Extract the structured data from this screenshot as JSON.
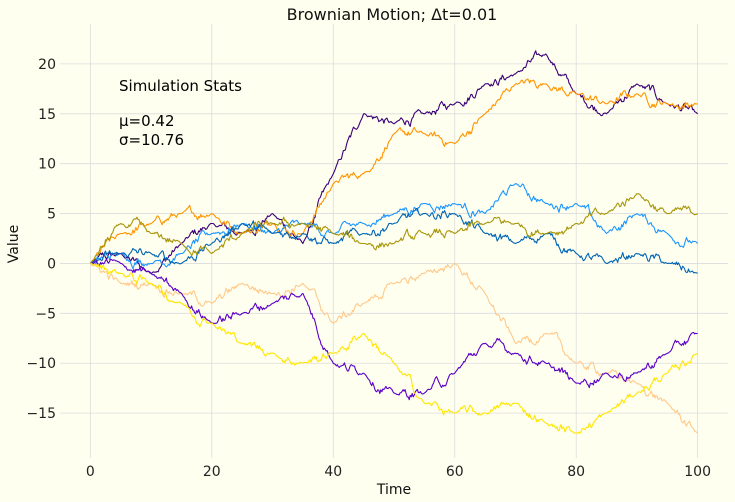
{
  "chart_data": {
    "type": "line",
    "title": "Brownian Motion; Δt=0.01",
    "xlabel": "Time",
    "ylabel": "Value",
    "xlim": [
      -5,
      105
    ],
    "ylim": [
      -19.5,
      24
    ],
    "xticks": [
      0,
      20,
      40,
      60,
      80,
      100
    ],
    "yticks": [
      -15,
      -10,
      -5,
      0,
      5,
      10,
      15,
      20
    ],
    "xtick_labels": [
      "0",
      "20",
      "40",
      "60",
      "80",
      "100"
    ],
    "ytick_labels": [
      "−15",
      "−10",
      "−5",
      "0",
      "5",
      "10",
      "15",
      "20"
    ],
    "grid": true,
    "stats_box": {
      "heading": "Simulation Stats",
      "mu": "μ=0.42",
      "sigma": "σ=10.76"
    },
    "series": [
      {
        "color": "#3a0078",
        "x": [
          0,
          5,
          10,
          15,
          20,
          25,
          30,
          35,
          40,
          45,
          50,
          55,
          60,
          65,
          70,
          75,
          80,
          85,
          90,
          95,
          100
        ],
        "values": [
          0,
          1,
          -1,
          2,
          4,
          3,
          5,
          2,
          9,
          15,
          14,
          15,
          16,
          18,
          19,
          21,
          17,
          15,
          18,
          16,
          15
        ]
      },
      {
        "color": "#ff9400",
        "x": [
          0,
          5,
          10,
          15,
          20,
          25,
          30,
          35,
          40,
          45,
          50,
          55,
          60,
          65,
          70,
          75,
          80,
          85,
          90,
          95,
          100
        ],
        "values": [
          0,
          3,
          4,
          5,
          5,
          3,
          4,
          3,
          8,
          9,
          13,
          13,
          12,
          15,
          18,
          18,
          17,
          16,
          17,
          16,
          16
        ]
      },
      {
        "color": "#1e96ff",
        "x": [
          0,
          5,
          10,
          15,
          20,
          25,
          30,
          35,
          40,
          45,
          50,
          55,
          60,
          65,
          70,
          75,
          80,
          85,
          90,
          95,
          100
        ],
        "values": [
          0,
          1,
          0,
          1,
          3,
          4,
          3,
          4,
          3,
          4,
          5,
          6,
          6,
          5,
          8,
          6,
          6,
          3,
          5,
          3,
          2
        ]
      },
      {
        "color": "#0064b4",
        "x": [
          0,
          5,
          10,
          15,
          20,
          25,
          30,
          35,
          40,
          45,
          50,
          55,
          60,
          65,
          70,
          75,
          80,
          85,
          90,
          95,
          100
        ],
        "values": [
          0,
          1,
          1,
          0,
          2,
          4,
          3,
          3,
          2,
          3,
          4,
          5,
          5,
          3,
          2,
          3,
          1,
          0,
          1,
          0,
          -1
        ]
      },
      {
        "color": "#a8960a",
        "x": [
          0,
          5,
          10,
          15,
          20,
          25,
          30,
          35,
          40,
          45,
          50,
          55,
          60,
          65,
          70,
          75,
          80,
          85,
          90,
          95,
          100
        ],
        "values": [
          0,
          4,
          3,
          2,
          1,
          3,
          4,
          4,
          3,
          2,
          2,
          3,
          3,
          4,
          4,
          3,
          4,
          5,
          7,
          5,
          5
        ]
      },
      {
        "color": "#ffc98a",
        "x": [
          0,
          5,
          10,
          15,
          20,
          25,
          30,
          35,
          40,
          45,
          50,
          55,
          60,
          65,
          70,
          75,
          80,
          85,
          90,
          95,
          100
        ],
        "values": [
          0,
          -2,
          -2,
          -3,
          -4,
          -2,
          -3,
          -2,
          -6,
          -4,
          -2,
          -1,
          0,
          -3,
          -8,
          -7,
          -10,
          -11,
          -12,
          -14,
          -17
        ]
      },
      {
        "color": "#5a00c8",
        "x": [
          0,
          5,
          10,
          15,
          20,
          25,
          30,
          35,
          40,
          45,
          50,
          55,
          60,
          65,
          70,
          75,
          80,
          85,
          90,
          95,
          100
        ],
        "values": [
          0,
          0,
          -1,
          -3,
          -6,
          -5,
          -4,
          -3,
          -10,
          -11,
          -13,
          -13,
          -11,
          -8,
          -9,
          -10,
          -12,
          -11,
          -11,
          -9,
          -7
        ]
      },
      {
        "color": "#ffe600",
        "x": [
          0,
          5,
          10,
          15,
          20,
          25,
          30,
          35,
          40,
          45,
          50,
          55,
          60,
          65,
          70,
          75,
          80,
          85,
          90,
          95,
          100
        ],
        "values": [
          0,
          -1,
          -2,
          -4,
          -6,
          -8,
          -9,
          -10,
          -9,
          -7,
          -10,
          -14,
          -15,
          -15,
          -14,
          -16,
          -17,
          -15,
          -13,
          -11,
          -9
        ]
      }
    ]
  }
}
